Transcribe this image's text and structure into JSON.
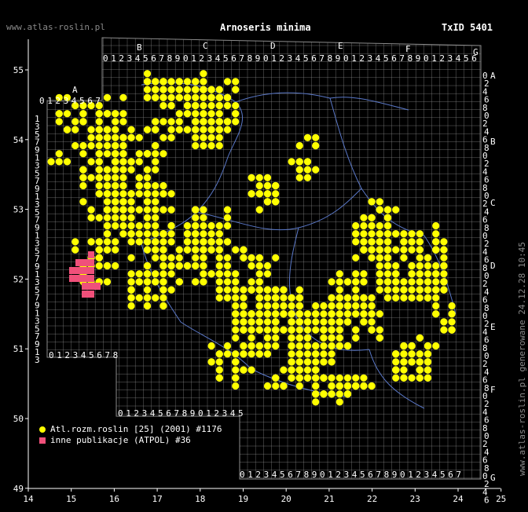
{
  "header": {
    "site": "www.atlas-roslin.pl",
    "title": "Arnoseris minima",
    "taxid": "TxID 5401"
  },
  "footer_vertical": "www.atlas-roslin.pl generowane 24.12.28 10:45",
  "axes": {
    "x_ticks": [
      "14",
      "15",
      "16",
      "17",
      "18",
      "19",
      "20",
      "21",
      "22",
      "23",
      "24",
      "25"
    ],
    "y_ticks": [
      "55",
      "54",
      "53",
      "52",
      "51",
      "50",
      "49"
    ]
  },
  "atpol_letters": {
    "top": [
      "A",
      "B",
      "C",
      "D",
      "E",
      "F",
      "G"
    ],
    "right": [
      "A",
      "B",
      "C",
      "D",
      "E",
      "F",
      "G"
    ]
  },
  "grid_digits": "0123456789",
  "legend": [
    {
      "label": "Atl.rozm.roslin [25] (2001) #1176",
      "color": "#ffff00"
    },
    {
      "label": "inne publikacje (ATPOL) #36",
      "color": "#f0507a"
    }
  ],
  "colors": {
    "occurrence": "#ffff00",
    "publication": "#f0507a",
    "grid": "#8c8c8c",
    "border": "#5a78c8"
  }
}
